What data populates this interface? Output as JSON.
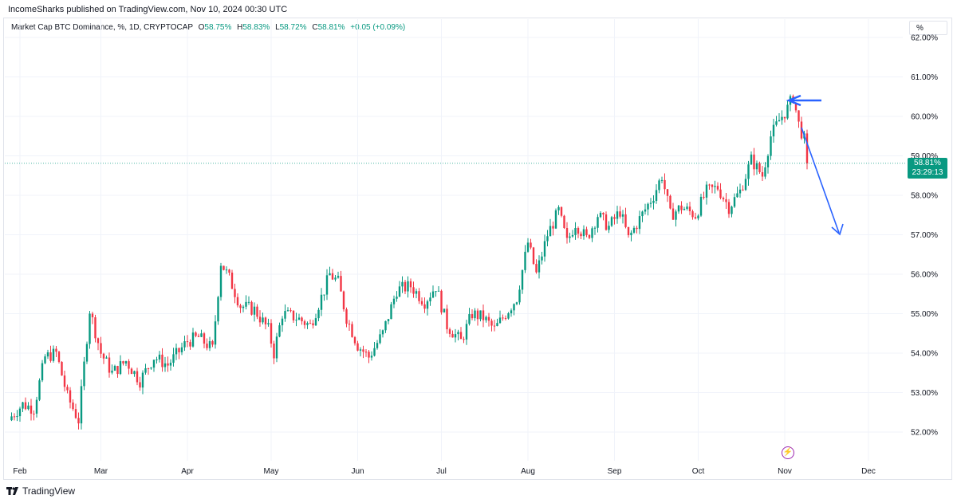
{
  "header": {
    "published": "IncomeSharks published on TradingView.com, Nov 10, 2024 00:30 UTC"
  },
  "legend": {
    "symbol": "Market Cap BTC Dominance, %, 1D, CRYPTOCAP",
    "o_label": "O",
    "o": "58.75%",
    "h_label": "H",
    "h": "58.83%",
    "l_label": "L",
    "l": "58.72%",
    "c_label": "C",
    "c": "58.81%",
    "change": "+0.05 (+0.09%)"
  },
  "unit_button": "%",
  "price_tag": {
    "price": "58.81%",
    "countdown": "23:29:13"
  },
  "footer": {
    "brand": "TradingView"
  },
  "colors": {
    "up": "#089981",
    "down": "#F23645",
    "annotation": "#2962FF",
    "grid": "#F0F3FA"
  },
  "chart_data": {
    "type": "candlestick",
    "title": "Market Cap BTC Dominance, %, 1D, CRYPTOCAP",
    "x_ticks": [
      "Feb",
      "Mar",
      "Apr",
      "May",
      "Jun",
      "Jul",
      "Aug",
      "Sep",
      "Oct",
      "Nov",
      "Dec"
    ],
    "y_ticks": [
      "52.00%",
      "53.00%",
      "54.00%",
      "55.00%",
      "56.00%",
      "57.00%",
      "58.00%",
      "59.00%",
      "60.00%",
      "61.00%",
      "62.00%"
    ],
    "ylim": [
      51.5,
      62.0
    ],
    "last_price": 58.81,
    "close_path": [
      [
        "Jan 29",
        52.4
      ],
      [
        "Feb 2",
        52.7
      ],
      [
        "Feb 6",
        52.6
      ],
      [
        "Feb 10",
        53.9
      ],
      [
        "Feb 14",
        54.0
      ],
      [
        "Feb 18",
        52.9
      ],
      [
        "Feb 22",
        52.3
      ],
      [
        "Feb 26",
        55.1
      ],
      [
        "Mar 1",
        54.0
      ],
      [
        "Mar 5",
        53.5
      ],
      [
        "Mar 10",
        53.8
      ],
      [
        "Mar 15",
        53.3
      ],
      [
        "Mar 20",
        53.9
      ],
      [
        "Mar 25",
        53.7
      ],
      [
        "Apr 1",
        54.3
      ],
      [
        "Apr 5",
        54.4
      ],
      [
        "Apr 10",
        54.1
      ],
      [
        "Apr 13",
        56.3
      ],
      [
        "Apr 16",
        55.9
      ],
      [
        "Apr 20",
        55.2
      ],
      [
        "Apr 25",
        55.1
      ],
      [
        "Apr 30",
        54.6
      ],
      [
        "May 2",
        54.0
      ],
      [
        "May 5",
        55.0
      ],
      [
        "May 10",
        54.9
      ],
      [
        "May 15",
        54.7
      ],
      [
        "May 20",
        55.6
      ],
      [
        "May 22",
        56.0
      ],
      [
        "May 25",
        55.8
      ],
      [
        "May 28",
        54.9
      ],
      [
        "Jun 1",
        54.2
      ],
      [
        "Jun 5",
        53.9
      ],
      [
        "Jun 10",
        54.5
      ],
      [
        "Jun 15",
        55.6
      ],
      [
        "Jun 20",
        55.7
      ],
      [
        "Jun 25",
        55.3
      ],
      [
        "Jun 29",
        55.7
      ],
      [
        "Jul 3",
        54.7
      ],
      [
        "Jul 8",
        54.3
      ],
      [
        "Jul 12",
        55.0
      ],
      [
        "Jul 16",
        54.9
      ],
      [
        "Jul 20",
        54.6
      ],
      [
        "Jul 24",
        55.0
      ],
      [
        "Jul 28",
        55.4
      ],
      [
        "Aug 1",
        56.8
      ],
      [
        "Aug 4",
        56.0
      ],
      [
        "Aug 8",
        57.0
      ],
      [
        "Aug 12",
        57.6
      ],
      [
        "Aug 15",
        56.8
      ],
      [
        "Aug 18",
        57.3
      ],
      [
        "Aug 22",
        56.9
      ],
      [
        "Aug 26",
        57.5
      ],
      [
        "Aug 30",
        57.2
      ],
      [
        "Sep 3",
        57.6
      ],
      [
        "Sep 6",
        56.9
      ],
      [
        "Sep 10",
        57.4
      ],
      [
        "Sep 15",
        58.0
      ],
      [
        "Sep 18",
        58.5
      ],
      [
        "Sep 21",
        57.5
      ],
      [
        "Sep 25",
        57.7
      ],
      [
        "Sep 30",
        57.5
      ],
      [
        "Oct 4",
        58.1
      ],
      [
        "Oct 8",
        58.2
      ],
      [
        "Oct 12",
        57.7
      ],
      [
        "Oct 16",
        58.1
      ],
      [
        "Oct 20",
        58.9
      ],
      [
        "Oct 24",
        58.5
      ],
      [
        "Oct 27",
        59.5
      ],
      [
        "Oct 30",
        59.9
      ],
      [
        "Nov 2",
        60.2
      ],
      [
        "Nov 4",
        60.5
      ],
      [
        "Nov 6",
        59.8
      ],
      [
        "Nov 8",
        59.4
      ],
      [
        "Nov 9",
        58.81
      ]
    ]
  }
}
